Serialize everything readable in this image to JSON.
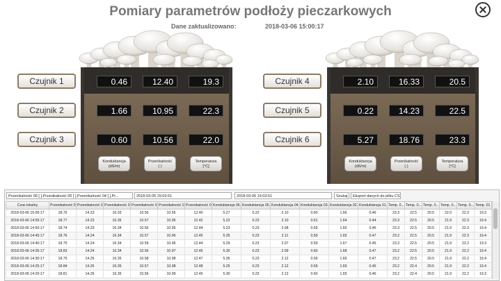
{
  "header": {
    "title": "Pomiary parametrów podłoży pieczarkowych",
    "updated_label": "Dane zaktualizowano:",
    "updated_value": "2018-03-06 15:00:17"
  },
  "panels": [
    {
      "sensors": [
        {
          "label": "Czujnik 1",
          "values": [
            "0.46",
            "12.40",
            "19.3"
          ]
        },
        {
          "label": "Czujnik 2",
          "values": [
            "1.66",
            "10.95",
            "22.3"
          ]
        },
        {
          "label": "Czujnik 3",
          "values": [
            "0.60",
            "10.56",
            "22.0"
          ]
        }
      ],
      "legend": [
        {
          "name": "Konduktancja",
          "unit": "(dS/m)"
        },
        {
          "name": "Przenikalność",
          "unit": "(   )"
        },
        {
          "name": "Temperatura",
          "unit": "[°C]"
        }
      ]
    },
    {
      "sensors": [
        {
          "label": "Czujnik 4",
          "values": [
            "2.10",
            "16.33",
            "20.5"
          ]
        },
        {
          "label": "Czujnik 5",
          "values": [
            "0.22",
            "14.23",
            "22.5"
          ]
        },
        {
          "label": "Czujnik 6",
          "values": [
            "5.27",
            "18.76",
            "23.3"
          ]
        }
      ],
      "legend": [
        {
          "name": "Konduktancja",
          "unit": "(dS/m)"
        },
        {
          "name": "Przenikalność",
          "unit": "(   )"
        },
        {
          "name": "Temperatura",
          "unit": "[°C]"
        }
      ]
    }
  ],
  "toolbar": {
    "filter": "Przenikalność 06 [ ],Przenikalność 05 [ ],Przenikalność 04 [ ],Pr...",
    "date_from": "2018-03-05 15:03:51",
    "date_to": "2018-03-06 15:03:51",
    "search": "Szukaj",
    "export": "Eksport danych do pliku CSV"
  },
  "table": {
    "columns": [
      "Czas lokalny",
      "Przenikalność 06...",
      "Przenikalność 05...",
      "Przenikalność 04...",
      "Przenikalność 03...",
      "Przenikalność 02...",
      "Przenikalność 01...",
      "Konduktancja 06...",
      "Konduktancja 05...",
      "Konduktancja 04...",
      "Konduktancja 03...",
      "Konduktancja 02...",
      "Konduktancja 01...",
      "Temp. 0...",
      "Temp. 0...",
      "Temp. 0...",
      "Temp. 0...",
      "Temp. 0...",
      "Temp. 01 ..."
    ],
    "rows": [
      [
        "2018-03-06 15:00:17",
        "18.76",
        "14.23",
        "16.33",
        "10.56",
        "10.95",
        "12.40",
        "5.27",
        "0.22",
        "2.10",
        "0.60",
        "1.66",
        "0.46",
        "23.3",
        "22.5",
        "20.5",
        "22.0",
        "22.3",
        "19.3"
      ],
      [
        "2018-03-06 14:55:17",
        "18.77",
        "14.23",
        "16.35",
        "10.57",
        "10.95",
        "12.42",
        "5.22",
        "0.23",
        "2.10",
        "0.61",
        "1.64",
        "0.44",
        "23.3",
        "22.5",
        "20.5",
        "21.9",
        "22.3",
        "19.4"
      ],
      [
        "2018-03-06 14:50:17",
        "18.74",
        "14.23",
        "16.34",
        "10.56",
        "10.95",
        "12.44",
        "5.23",
        "0.23",
        "2.08",
        "0.59",
        "1.65",
        "0.46",
        "23.3",
        "22.5",
        "20.5",
        "21.9",
        "22.3",
        "19.4"
      ],
      [
        "2018-03-06 14:45:17",
        "18.76",
        "14.24",
        "16.34",
        "10.57",
        "10.96",
        "12.45",
        "5.35",
        "0.23",
        "2.11",
        "0.59",
        "1.65",
        "0.47",
        "23.2",
        "22.5",
        "20.5",
        "21.9",
        "22.3",
        "19.4"
      ],
      [
        "2018-03-06 14:40:17",
        "18.75",
        "14.24",
        "16.34",
        "10.59",
        "10.96",
        "12.44",
        "5.29",
        "0.23",
        "2.07",
        "0.59",
        "1.67",
        "0.45",
        "23.3",
        "22.5",
        "20.5",
        "21.9",
        "22.2",
        "19.3"
      ],
      [
        "2018-03-06 14:35:17",
        "18.83",
        "14.24",
        "16.34",
        "10.56",
        "10.97",
        "12.45",
        "5.30",
        "0.23",
        "2.09",
        "0.60",
        "1.68",
        "0.47",
        "23.2",
        "22.5",
        "20.5",
        "21.9",
        "22.2",
        "19.4"
      ],
      [
        "2018-03-06 14:30:17",
        "18.75",
        "14.25",
        "16.35",
        "10.58",
        "10.98",
        "12.47",
        "5.35",
        "0.23",
        "2.12",
        "0.59",
        "1.65",
        "0.47",
        "23.2",
        "22.5",
        "20.5",
        "21.9",
        "22.2",
        "19.4"
      ],
      [
        "2018-03-06 14:25:17",
        "18.84",
        "14.26",
        "16.35",
        "10.57",
        "10.98",
        "12.48",
        "5.25",
        "0.23",
        "2.12",
        "0.59",
        "1.69",
        "0.46",
        "23.2",
        "22.4",
        "20.5",
        "21.9",
        "22.2",
        "19.4"
      ],
      [
        "2018-03-06 14:20:17",
        "18.81",
        "14.26",
        "16.35",
        "10.56",
        "10.99",
        "12.45",
        "5.30",
        "0.23",
        "2.12",
        "0.60",
        "1.65",
        "0.46",
        "23.2",
        "22.4",
        "20.5",
        "21.9",
        "22.2",
        "19.3"
      ]
    ]
  }
}
